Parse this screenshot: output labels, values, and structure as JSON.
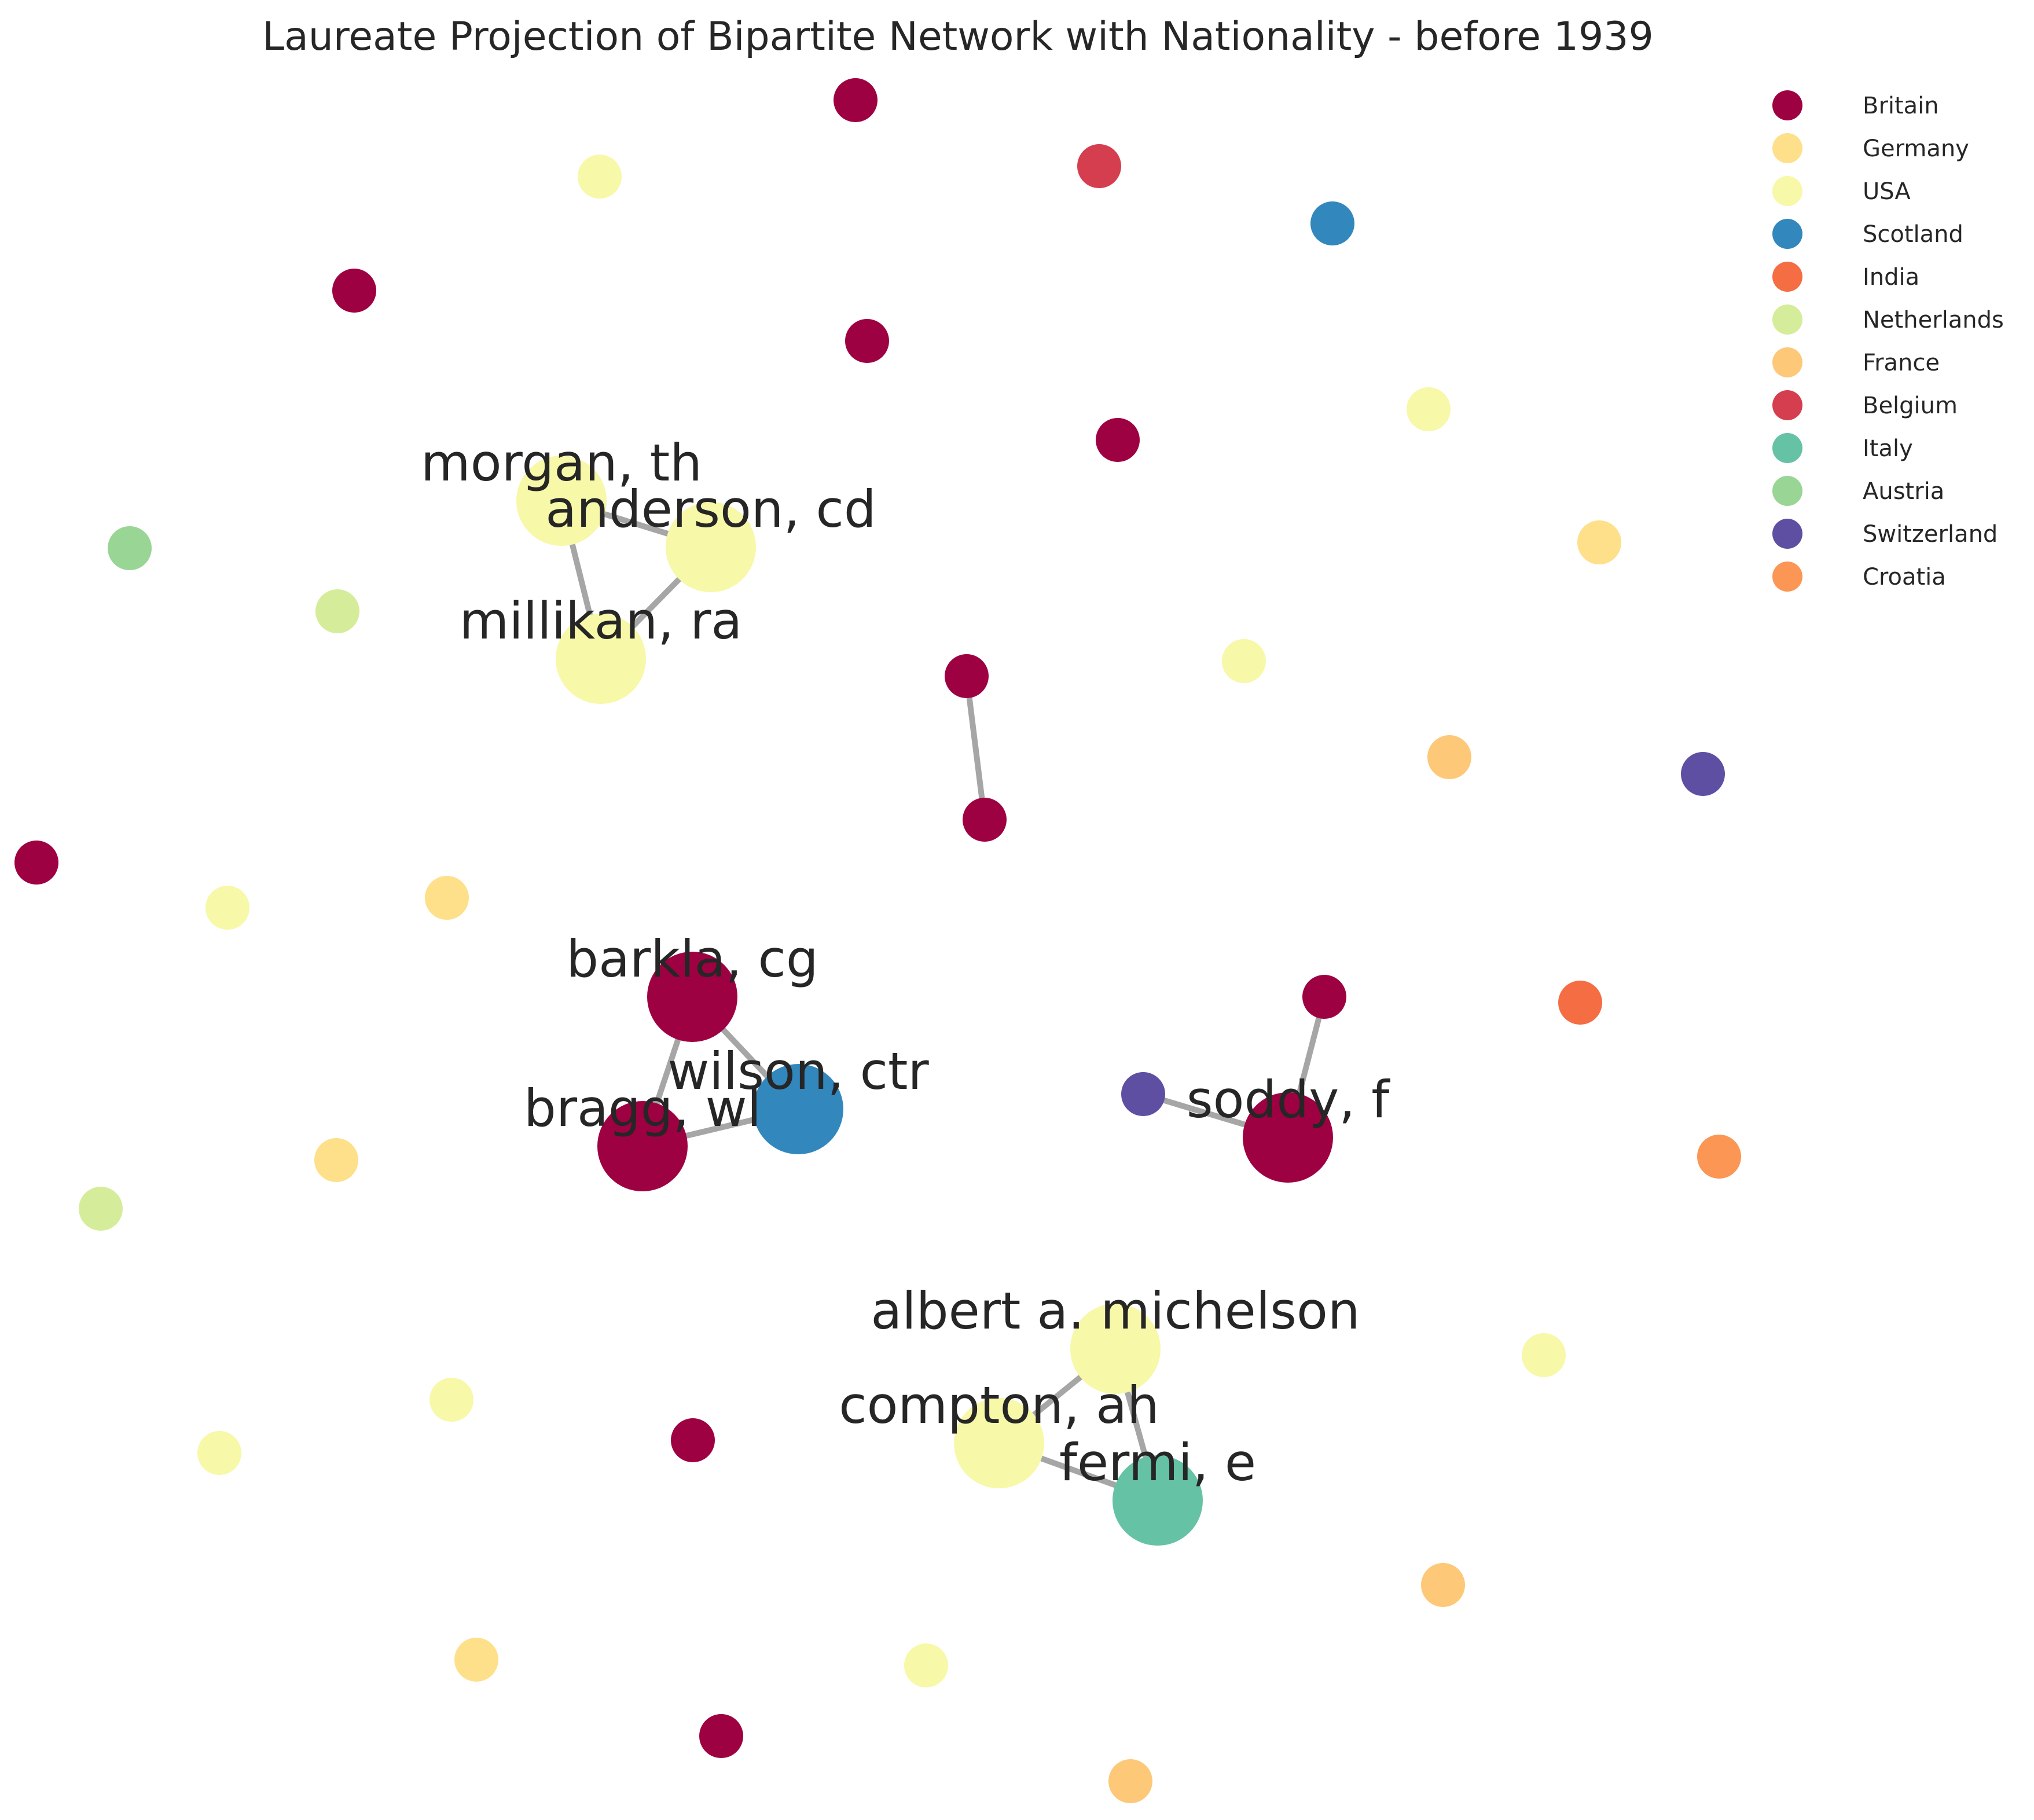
{
  "title": "Laureate Projection of Bipartite Network with Nationality - before 1939",
  "legend": [
    {
      "label": "Britain",
      "color": "#9e0142"
    },
    {
      "label": "Germany",
      "color": "#fee08b"
    },
    {
      "label": "USA",
      "color": "#f7f8a8"
    },
    {
      "label": "Scotland",
      "color": "#3288bd"
    },
    {
      "label": "India",
      "color": "#f46d43"
    },
    {
      "label": "Netherlands",
      "color": "#d5ed9a"
    },
    {
      "label": "France",
      "color": "#fdc878"
    },
    {
      "label": "Belgium",
      "color": "#d53e4f"
    },
    {
      "label": "Italy",
      "color": "#66c2a5"
    },
    {
      "label": "Austria",
      "color": "#99d594"
    },
    {
      "label": "Switzerland",
      "color": "#5e4fa2"
    },
    {
      "label": "Croatia",
      "color": "#fb9655"
    }
  ],
  "labeled_nodes": {
    "morgan": "morgan, th",
    "anderson": "anderson, cd",
    "millikan": "millikan, ra",
    "barkla": "barkla, cg",
    "wilson": "wilson, ctr",
    "bragg": "bragg, wl",
    "soddy": "soddy, f",
    "michelson": "albert a. michelson",
    "compton": "compton, ah",
    "fermi": "fermi, e"
  },
  "network": {
    "nodes": [
      {
        "id": "morgan",
        "nationality": "USA",
        "label_key": "morgan"
      },
      {
        "id": "anderson",
        "nationality": "USA",
        "label_key": "anderson"
      },
      {
        "id": "millikan",
        "nationality": "USA",
        "label_key": "millikan"
      },
      {
        "id": "barkla",
        "nationality": "Britain",
        "label_key": "barkla"
      },
      {
        "id": "wilson",
        "nationality": "Scotland",
        "label_key": "wilson"
      },
      {
        "id": "bragg",
        "nationality": "Britain",
        "label_key": "bragg"
      },
      {
        "id": "soddy",
        "nationality": "Britain",
        "label_key": "soddy"
      },
      {
        "id": "michelson",
        "nationality": "USA",
        "label_key": "michelson"
      },
      {
        "id": "compton",
        "nationality": "USA",
        "label_key": "compton"
      },
      {
        "id": "fermi",
        "nationality": "Italy",
        "label_key": "fermi"
      },
      {
        "id": "b_top",
        "nationality": "Britain"
      },
      {
        "id": "be_top",
        "nationality": "Belgium"
      },
      {
        "id": "usa_top",
        "nationality": "USA"
      },
      {
        "id": "sc_top",
        "nationality": "Scotland"
      },
      {
        "id": "b_tl",
        "nationality": "Britain"
      },
      {
        "id": "b_tm",
        "nationality": "Britain"
      },
      {
        "id": "usa_tr",
        "nationality": "USA"
      },
      {
        "id": "b_mid",
        "nationality": "Britain"
      },
      {
        "id": "de_r1",
        "nationality": "Germany"
      },
      {
        "id": "at_l",
        "nationality": "Austria"
      },
      {
        "id": "nl_l",
        "nationality": "Netherlands"
      },
      {
        "id": "b_pair1",
        "nationality": "Britain"
      },
      {
        "id": "b_pair2",
        "nationality": "Britain"
      },
      {
        "id": "usa_m",
        "nationality": "USA"
      },
      {
        "id": "fr_r1",
        "nationality": "France"
      },
      {
        "id": "ch_r",
        "nationality": "Switzerland"
      },
      {
        "id": "b_left",
        "nationality": "Britain"
      },
      {
        "id": "usa_l",
        "nationality": "USA"
      },
      {
        "id": "de_l",
        "nationality": "Germany"
      },
      {
        "id": "b_soddy_nb",
        "nationality": "Britain"
      },
      {
        "id": "ch_soddy_nb",
        "nationality": "Switzerland"
      },
      {
        "id": "in_r",
        "nationality": "India"
      },
      {
        "id": "de_l2",
        "nationality": "Germany"
      },
      {
        "id": "nl_l2",
        "nationality": "Netherlands"
      },
      {
        "id": "hr_r",
        "nationality": "Croatia"
      },
      {
        "id": "usa_r2",
        "nationality": "USA"
      },
      {
        "id": "usa_l2",
        "nationality": "USA"
      },
      {
        "id": "usa_l3",
        "nationality": "USA"
      },
      {
        "id": "b_bl",
        "nationality": "Britain"
      },
      {
        "id": "fr_b1",
        "nationality": "France"
      },
      {
        "id": "de_b",
        "nationality": "Germany"
      },
      {
        "id": "usa_b",
        "nationality": "USA"
      },
      {
        "id": "b_b",
        "nationality": "Britain"
      },
      {
        "id": "fr_b2",
        "nationality": "France"
      }
    ],
    "edges": [
      [
        "morgan",
        "anderson"
      ],
      [
        "morgan",
        "millikan"
      ],
      [
        "anderson",
        "millikan"
      ],
      [
        "barkla",
        "wilson"
      ],
      [
        "barkla",
        "bragg"
      ],
      [
        "bragg",
        "wilson"
      ],
      [
        "soddy",
        "b_soddy_nb"
      ],
      [
        "soddy",
        "ch_soddy_nb"
      ],
      [
        "b_pair1",
        "b_pair2"
      ],
      [
        "michelson",
        "compton"
      ],
      [
        "michelson",
        "fermi"
      ],
      [
        "compton",
        "fermi"
      ]
    ]
  }
}
